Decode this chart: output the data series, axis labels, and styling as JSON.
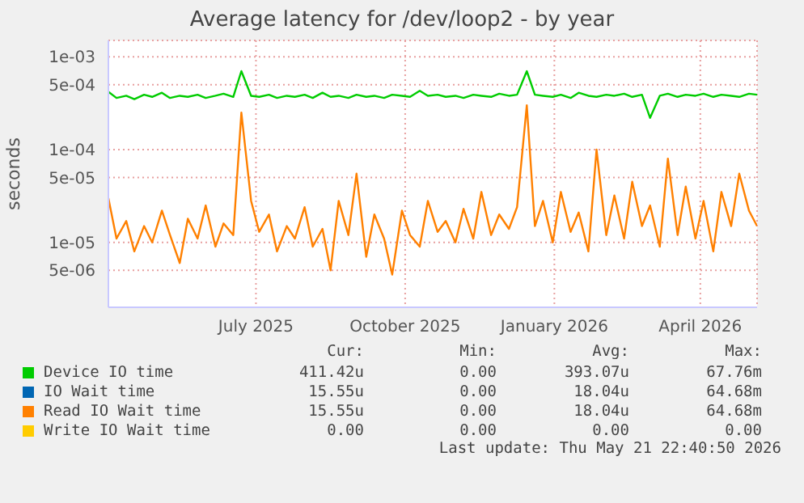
{
  "chart_data": {
    "type": "line",
    "title": "Average latency for /dev/loop2 - by year",
    "ylabel": "seconds",
    "log": "y",
    "grid": true,
    "legend": "bottom",
    "marker": "none",
    "line_style": "solid",
    "xlim": [
      "2025-04-16",
      "2026-05-21"
    ],
    "xticks": [
      {
        "value": "2025-07-16",
        "label": "July 2025"
      },
      {
        "value": "2025-10-16",
        "label": "October 2025"
      },
      {
        "value": "2026-01-16",
        "label": "January 2026"
      },
      {
        "value": "2026-04-16",
        "label": "April 2026"
      }
    ],
    "ylim": [
      2e-06,
      0.0015
    ],
    "yticks": [
      {
        "value": 5e-06,
        "label": "5e-06"
      },
      {
        "value": 1e-05,
        "label": "1e-05"
      },
      {
        "value": 5e-05,
        "label": "5e-05"
      },
      {
        "value": 0.0001,
        "label": "1e-04"
      },
      {
        "value": 0.0005,
        "label": "5e-04"
      },
      {
        "value": 0.001,
        "label": "1e-03"
      }
    ],
    "x": [
      "2025-04-16",
      "2025-04-21",
      "2025-04-27",
      "2025-05-02",
      "2025-05-08",
      "2025-05-13",
      "2025-05-19",
      "2025-05-24",
      "2025-05-30",
      "2025-06-04",
      "2025-06-10",
      "2025-06-15",
      "2025-06-21",
      "2025-06-26",
      "2025-07-02",
      "2025-07-07",
      "2025-07-13",
      "2025-07-18",
      "2025-07-24",
      "2025-07-29",
      "2025-08-04",
      "2025-08-09",
      "2025-08-15",
      "2025-08-20",
      "2025-08-26",
      "2025-08-31",
      "2025-09-05",
      "2025-09-11",
      "2025-09-16",
      "2025-09-22",
      "2025-09-27",
      "2025-10-03",
      "2025-10-08",
      "2025-10-14",
      "2025-10-19",
      "2025-10-25",
      "2025-10-30",
      "2025-11-05",
      "2025-11-10",
      "2025-11-16",
      "2025-11-21",
      "2025-11-27",
      "2025-12-02",
      "2025-12-08",
      "2025-12-13",
      "2025-12-19",
      "2025-12-24",
      "2025-12-30",
      "2026-01-04",
      "2026-01-09",
      "2026-01-15",
      "2026-01-20",
      "2026-01-26",
      "2026-01-31",
      "2026-02-06",
      "2026-02-11",
      "2026-02-17",
      "2026-02-22",
      "2026-02-28",
      "2026-03-05",
      "2026-03-11",
      "2026-03-16",
      "2026-03-22",
      "2026-03-27",
      "2026-04-02",
      "2026-04-07",
      "2026-04-13",
      "2026-04-18",
      "2026-04-24",
      "2026-04-29",
      "2026-05-05",
      "2026-05-10",
      "2026-05-16",
      "2026-05-21"
    ],
    "series": [
      {
        "name": "Device IO time",
        "color": "#00cc00",
        "values": [
          0.00042,
          0.00036,
          0.00038,
          0.00035,
          0.00039,
          0.00037,
          0.00041,
          0.00036,
          0.00038,
          0.00037,
          0.00039,
          0.00036,
          0.00038,
          0.0004,
          0.00037,
          0.0007,
          0.00038,
          0.00037,
          0.00039,
          0.00036,
          0.00038,
          0.00037,
          0.00039,
          0.00036,
          0.00041,
          0.00037,
          0.00038,
          0.00036,
          0.00039,
          0.00037,
          0.00038,
          0.00036,
          0.00039,
          0.00038,
          0.00037,
          0.00043,
          0.00038,
          0.00039,
          0.00037,
          0.00038,
          0.00036,
          0.00039,
          0.00038,
          0.00037,
          0.0004,
          0.00038,
          0.00039,
          0.0007,
          0.00039,
          0.00038,
          0.00037,
          0.00039,
          0.00036,
          0.00041,
          0.00038,
          0.00037,
          0.00039,
          0.00038,
          0.0004,
          0.00037,
          0.00039,
          0.00022,
          0.00038,
          0.0004,
          0.00037,
          0.00039,
          0.00038,
          0.0004,
          0.00037,
          0.00039,
          0.00038,
          0.00037,
          0.0004,
          0.00039
        ]
      },
      {
        "name": "IO Wait time",
        "color": "#0066b3",
        "values": [
          null,
          null,
          null,
          null,
          null,
          null,
          null,
          null,
          null,
          null,
          null,
          null,
          null,
          null,
          null,
          null,
          null,
          null,
          null,
          null,
          null,
          null,
          null,
          null,
          null,
          null,
          null,
          null,
          null,
          null,
          null,
          null,
          null,
          null,
          null,
          null,
          null,
          null,
          null,
          null,
          null,
          null,
          null,
          null,
          null,
          null,
          null,
          null,
          null,
          null,
          null,
          null,
          null,
          null,
          null,
          null,
          null,
          null,
          null,
          null,
          null,
          null,
          null,
          null,
          null,
          null,
          null,
          null,
          null,
          null,
          null,
          null,
          null,
          null
        ]
      },
      {
        "name": "Read IO Wait time",
        "color": "#ff8000",
        "values": [
          3e-05,
          1.1e-05,
          1.7e-05,
          8e-06,
          1.5e-05,
          1e-05,
          2.2e-05,
          1.2e-05,
          6e-06,
          1.8e-05,
          1.1e-05,
          2.5e-05,
          9e-06,
          1.6e-05,
          1.2e-05,
          0.00025,
          2.8e-05,
          1.3e-05,
          2e-05,
          8e-06,
          1.5e-05,
          1.1e-05,
          2.4e-05,
          9e-06,
          1.4e-05,
          5e-06,
          2.8e-05,
          1.2e-05,
          5.5e-05,
          7e-06,
          2e-05,
          1.1e-05,
          4.5e-06,
          2.2e-05,
          1.2e-05,
          9e-06,
          2.8e-05,
          1.3e-05,
          1.7e-05,
          1e-05,
          2.3e-05,
          1.1e-05,
          3.5e-05,
          1.2e-05,
          2e-05,
          1.4e-05,
          2.4e-05,
          0.0003,
          1.5e-05,
          2.8e-05,
          1e-05,
          3.5e-05,
          1.3e-05,
          2.1e-05,
          8e-06,
          0.0001,
          1.2e-05,
          3.2e-05,
          1.1e-05,
          4.5e-05,
          1.5e-05,
          2.5e-05,
          9e-06,
          8e-05,
          1.2e-05,
          4e-05,
          1.1e-05,
          2.8e-05,
          8e-06,
          3.5e-05,
          1.5e-05,
          5.5e-05,
          2.2e-05,
          1.5e-05
        ]
      },
      {
        "name": "Write IO Wait time",
        "color": "#ffcc00",
        "values": [
          null,
          null,
          null,
          null,
          null,
          null,
          null,
          null,
          null,
          null,
          null,
          null,
          null,
          null,
          null,
          null,
          null,
          null,
          null,
          null,
          null,
          null,
          null,
          null,
          null,
          null,
          null,
          null,
          null,
          null,
          null,
          null,
          null,
          null,
          null,
          null,
          null,
          null,
          null,
          null,
          null,
          null,
          null,
          null,
          null,
          null,
          null,
          null,
          null,
          null,
          null,
          null,
          null,
          null,
          null,
          null,
          null,
          null,
          null,
          null,
          null,
          null,
          null,
          null,
          null,
          null,
          null,
          null,
          null,
          null,
          null,
          null,
          null,
          null
        ]
      }
    ],
    "annotations": [
      "Cur:",
      "Min:",
      "Avg:",
      "Max:",
      "411.42u",
      "0.00",
      "393.07u",
      "67.76m",
      "15.55u",
      "0.00",
      "18.04u",
      "64.68m",
      "15.55u",
      "0.00",
      "18.04u",
      "64.68m",
      "0.00",
      "0.00",
      "0.00",
      "0.00",
      "Last update: Thu May 21 22:40:50 2026"
    ]
  }
}
